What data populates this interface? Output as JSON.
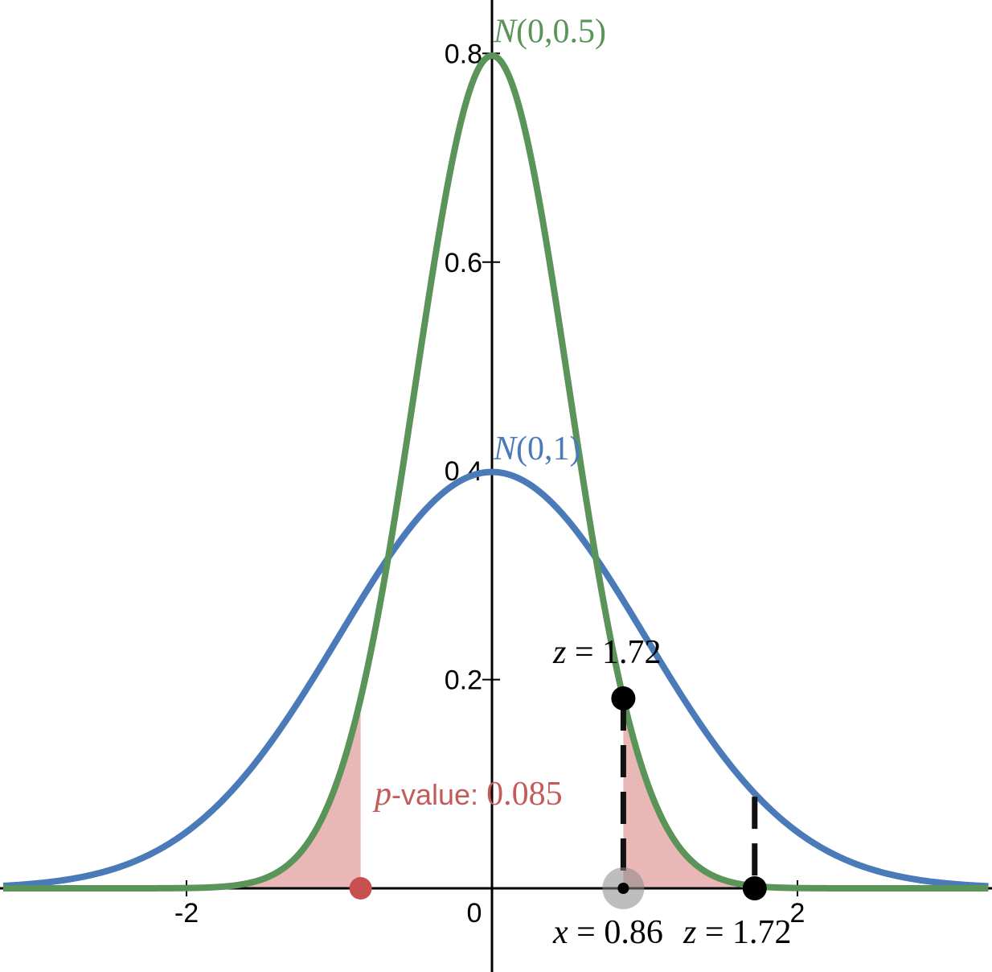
{
  "chart_data": {
    "type": "line",
    "xlim": [
      -3.2,
      3.25
    ],
    "ylim": [
      -0.16,
      0.8
    ],
    "grid": false,
    "x_ticks": [
      {
        "value": -2,
        "label": "-2"
      },
      {
        "value": 0,
        "label": "0"
      },
      {
        "value": 2,
        "label": "2"
      }
    ],
    "y_ticks": [
      {
        "value": 0.2,
        "label": "0.2"
      },
      {
        "value": 0.4,
        "label": "0.4"
      },
      {
        "value": 0.6,
        "label": "0.6"
      },
      {
        "value": 0.8,
        "label": "0.8"
      }
    ],
    "series": [
      {
        "name": "N(0,1)",
        "label_parts": [
          "N",
          "(0,1)"
        ],
        "mean": 0,
        "sd": 1,
        "color": "#4a7ab8"
      },
      {
        "name": "N(0,0.5)",
        "label_parts": [
          "N",
          "(0,0.5)"
        ],
        "mean": 0,
        "sd": 0.5,
        "color": "#5a9458"
      }
    ],
    "shaded_tails": {
      "color": "#d97b7b",
      "on_series": "N(0,0.5)",
      "cutoff": 0.86
    },
    "p_value": {
      "label_prefix": "p",
      "label_middle": "-value: ",
      "value": "0.085",
      "color": "#c45b5b"
    },
    "points": [
      {
        "name": "left-tail-point",
        "x": -0.86,
        "y": 0,
        "color": "#c85050"
      },
      {
        "name": "x-point",
        "x": 0.86,
        "y": 0,
        "color": "#000000"
      },
      {
        "name": "x-curve-point",
        "x": 0.86,
        "y": 0.182,
        "color": "#000000"
      },
      {
        "name": "z-point",
        "x": 1.72,
        "y": 0,
        "color": "#000000"
      }
    ],
    "annotations": {
      "z_top": {
        "var": "z",
        "op": " = ",
        "value": "1.72"
      },
      "x_bottom": {
        "var": "x",
        "op": " = ",
        "value": "0.86"
      },
      "z_bottom": {
        "var": "z",
        "op": " = ",
        "value": "1.72"
      }
    }
  }
}
